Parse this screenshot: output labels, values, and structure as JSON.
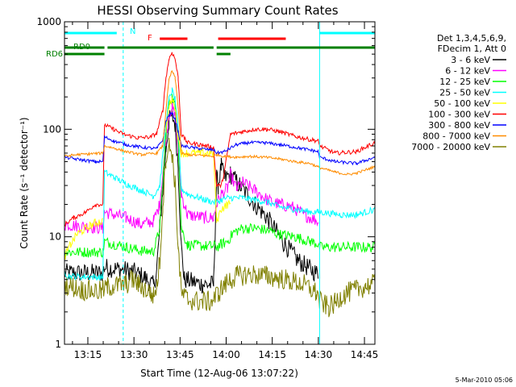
{
  "chart_data": {
    "type": "line",
    "title": "HESSI Observing Summary Count Rates",
    "xlabel": "Start Time (12-Aug-06 13:07:22)",
    "ylabel": "Count Rate (s⁻¹ detector⁻¹)",
    "footer": "5-Mar-2010 05:06",
    "x_unit": "minutes since 13:07:22",
    "xlim": [
      0,
      101
    ],
    "ylim": [
      1,
      1000
    ],
    "yscale": "log",
    "x_ticks": [
      {
        "label": "13:15",
        "value": 7.6
      },
      {
        "label": "13:30",
        "value": 22.6
      },
      {
        "label": "13:45",
        "value": 37.6
      },
      {
        "label": "14:00",
        "value": 52.6
      },
      {
        "label": "14:15",
        "value": 67.6
      },
      {
        "label": "14:30",
        "value": 82.6
      },
      {
        "label": "14:45",
        "value": 97.6
      }
    ],
    "y_ticks": [
      {
        "label": "1",
        "value": 1
      },
      {
        "label": "10",
        "value": 10
      },
      {
        "label": "100",
        "value": 100
      },
      {
        "label": "1000",
        "value": 1000
      }
    ],
    "legend_header": [
      "Det 1,3,4,5,6,9,",
      "FDecim 1, Att 0"
    ],
    "legend_placement": "right",
    "vlines": [
      {
        "x": 19.1,
        "style": "dashed",
        "color": "#00ffff"
      },
      {
        "x": 83.0,
        "style": "solid",
        "color": "#00ffff"
      },
      {
        "x": 101.0,
        "style": "dashed",
        "color": "#00ffff"
      }
    ],
    "flags": [
      {
        "label": "N",
        "color": "#00ffff",
        "segments": [
          [
            0,
            17
          ],
          [
            83,
            101
          ]
        ],
        "level": 1
      },
      {
        "label": "F",
        "color": "#ff0000",
        "segments": [
          [
            31,
            40
          ],
          [
            50,
            72
          ]
        ],
        "level": 2
      },
      {
        "label": "RD0",
        "color": "#008000",
        "segments": [
          [
            0,
            13
          ],
          [
            14,
            48.5
          ],
          [
            49.5,
            101
          ]
        ],
        "level": 3
      },
      {
        "label": "RD6",
        "color": "#008000",
        "segments": [
          [
            0,
            13
          ],
          [
            49.5,
            54
          ]
        ],
        "level": 4
      }
    ],
    "series": [
      {
        "name": "3 - 6 keV",
        "color": "#000000",
        "points": [
          [
            0,
            4.6
          ],
          [
            12.5,
            4.6
          ],
          [
            13,
            5.2
          ],
          [
            22,
            4.8
          ],
          [
            26,
            4.2
          ],
          [
            29,
            3.5
          ],
          [
            30,
            5
          ],
          [
            31,
            12
          ],
          [
            33,
            65
          ],
          [
            34,
            120
          ],
          [
            35,
            135
          ],
          [
            36,
            110
          ],
          [
            37,
            45
          ],
          [
            38,
            8
          ],
          [
            39,
            4
          ],
          [
            45,
            3.6
          ],
          [
            48.5,
            3.6
          ],
          [
            49.5,
            35
          ],
          [
            50,
            30
          ],
          [
            51,
            45
          ],
          [
            52,
            35
          ],
          [
            54,
            38
          ],
          [
            57,
            30
          ],
          [
            62,
            20
          ],
          [
            66,
            15
          ],
          [
            71,
            9
          ],
          [
            76,
            6
          ],
          [
            80,
            5
          ],
          [
            82.5,
            4.5
          ],
          [
            83,
            null
          ],
          [
            101,
            null
          ]
        ]
      },
      {
        "name": "6 - 12 keV",
        "color": "#ff00ff",
        "points": [
          [
            0,
            13
          ],
          [
            12.5,
            12
          ],
          [
            13,
            17
          ],
          [
            20,
            15
          ],
          [
            25,
            13
          ],
          [
            29,
            14
          ],
          [
            31,
            20
          ],
          [
            33,
            80
          ],
          [
            34,
            140
          ],
          [
            35,
            160
          ],
          [
            36,
            130
          ],
          [
            37,
            60
          ],
          [
            38,
            25
          ],
          [
            40,
            16
          ],
          [
            46,
            15
          ],
          [
            48.5,
            15
          ],
          [
            49.5,
            20
          ],
          [
            51,
            25
          ],
          [
            53,
            28
          ],
          [
            54,
            38
          ],
          [
            56,
            28
          ],
          [
            58,
            32
          ],
          [
            62,
            27
          ],
          [
            66,
            22
          ],
          [
            70,
            20
          ],
          [
            74,
            19
          ],
          [
            78,
            16
          ],
          [
            82.5,
            14
          ],
          [
            83,
            null
          ],
          [
            101,
            null
          ]
        ]
      },
      {
        "name": "12 - 25 keV",
        "color": "#00ff00",
        "points": [
          [
            0,
            7.2
          ],
          [
            12.5,
            7.2
          ],
          [
            13,
            9
          ],
          [
            16,
            8.6
          ],
          [
            20,
            8
          ],
          [
            25,
            7.4
          ],
          [
            29,
            7.3
          ],
          [
            31,
            12
          ],
          [
            33,
            90
          ],
          [
            34,
            175
          ],
          [
            35,
            200
          ],
          [
            36,
            165
          ],
          [
            37,
            80
          ],
          [
            38,
            12
          ],
          [
            40,
            8.4
          ],
          [
            46,
            8.2
          ],
          [
            48.5,
            8.2
          ],
          [
            49.5,
            8
          ],
          [
            51,
            8.5
          ],
          [
            53,
            9
          ],
          [
            55,
            11
          ],
          [
            58,
            12
          ],
          [
            62,
            12
          ],
          [
            66,
            11.5
          ],
          [
            70,
            10.5
          ],
          [
            75,
            10
          ],
          [
            80,
            9
          ],
          [
            82.5,
            8.6
          ],
          [
            83,
            8
          ],
          [
            101,
            8
          ]
        ]
      },
      {
        "name": "25 - 50 keV",
        "color": "#00ffff",
        "points": [
          [
            0,
            4.8
          ],
          [
            1,
            4.3
          ],
          [
            12,
            4.2
          ],
          [
            12.5,
            4.3
          ],
          [
            13,
            40
          ],
          [
            16,
            36
          ],
          [
            20,
            31
          ],
          [
            25,
            27
          ],
          [
            29,
            24
          ],
          [
            31,
            30
          ],
          [
            33,
            110
          ],
          [
            34,
            190
          ],
          [
            35,
            230
          ],
          [
            36,
            190
          ],
          [
            37,
            100
          ],
          [
            38,
            28
          ],
          [
            40,
            25
          ],
          [
            46,
            22
          ],
          [
            48.5,
            21
          ],
          [
            49.5,
            21
          ],
          [
            51,
            22
          ],
          [
            53,
            23
          ],
          [
            58,
            23
          ],
          [
            62,
            22
          ],
          [
            66,
            21
          ],
          [
            70,
            19
          ],
          [
            75,
            18
          ],
          [
            80,
            17
          ],
          [
            82.5,
            17
          ],
          [
            83,
            17
          ],
          [
            90,
            16
          ],
          [
            95,
            16
          ],
          [
            101,
            18
          ]
        ]
      },
      {
        "name": "50 - 100 keV",
        "color": "#ffff00",
        "points": [
          [
            0,
            6.5
          ],
          [
            2,
            8.5
          ],
          [
            4,
            10.5
          ],
          [
            7,
            12
          ],
          [
            10,
            13.5
          ],
          [
            12.5,
            14
          ],
          [
            13,
            null
          ],
          [
            31,
            null
          ],
          [
            33,
            100
          ],
          [
            34,
            160
          ],
          [
            35,
            190
          ],
          [
            36,
            160
          ],
          [
            37,
            85
          ],
          [
            38,
            60
          ],
          [
            46,
            60
          ],
          [
            48.5,
            60
          ],
          [
            49.5,
            14
          ],
          [
            51,
            18
          ],
          [
            53,
            20
          ],
          [
            54,
            20
          ],
          [
            55,
            null
          ],
          [
            101,
            null
          ]
        ]
      },
      {
        "name": "100 - 300 keV",
        "color": "#ff0000",
        "points": [
          [
            0,
            13
          ],
          [
            3,
            15
          ],
          [
            7,
            17
          ],
          [
            10,
            20
          ],
          [
            12.5,
            20
          ],
          [
            13,
            110
          ],
          [
            16,
            100
          ],
          [
            19,
            90
          ],
          [
            24,
            83
          ],
          [
            28,
            85
          ],
          [
            30,
            92
          ],
          [
            32,
            150
          ],
          [
            33,
            300
          ],
          [
            34,
            450
          ],
          [
            35,
            520
          ],
          [
            36,
            450
          ],
          [
            37,
            300
          ],
          [
            38,
            90
          ],
          [
            40,
            75
          ],
          [
            44,
            72
          ],
          [
            48.5,
            68
          ],
          [
            49.5,
            30
          ],
          [
            51,
            30
          ],
          [
            52,
            40
          ],
          [
            54,
            90
          ],
          [
            58,
            95
          ],
          [
            62,
            100
          ],
          [
            66,
            100
          ],
          [
            70,
            95
          ],
          [
            75,
            86
          ],
          [
            80,
            80
          ],
          [
            82.5,
            78
          ],
          [
            83,
            70
          ],
          [
            88,
            60
          ],
          [
            95,
            62
          ],
          [
            101,
            75
          ]
        ]
      },
      {
        "name": "300 - 800 keV",
        "color": "#0000ff",
        "points": [
          [
            0,
            55
          ],
          [
            5,
            52
          ],
          [
            10,
            50
          ],
          [
            12.5,
            50
          ],
          [
            13,
            85
          ],
          [
            16,
            78
          ],
          [
            20,
            72
          ],
          [
            25,
            68
          ],
          [
            30,
            66
          ],
          [
            32,
            80
          ],
          [
            33,
            120
          ],
          [
            34,
            135
          ],
          [
            35,
            140
          ],
          [
            36,
            125
          ],
          [
            37,
            95
          ],
          [
            38,
            70
          ],
          [
            44,
            66
          ],
          [
            48.5,
            64
          ],
          [
            49.5,
            60
          ],
          [
            52,
            62
          ],
          [
            56,
            72
          ],
          [
            60,
            75
          ],
          [
            65,
            75
          ],
          [
            70,
            72
          ],
          [
            75,
            68
          ],
          [
            80,
            64
          ],
          [
            82.5,
            62
          ],
          [
            83,
            55
          ],
          [
            88,
            50
          ],
          [
            95,
            48
          ],
          [
            101,
            55
          ]
        ]
      },
      {
        "name": "800 - 7000 keV",
        "color": "#ff8c00",
        "points": [
          [
            0,
            56
          ],
          [
            4,
            58
          ],
          [
            8,
            59
          ],
          [
            12.5,
            60
          ],
          [
            13,
            70
          ],
          [
            16,
            67
          ],
          [
            20,
            62
          ],
          [
            25,
            58
          ],
          [
            30,
            60
          ],
          [
            32,
            70
          ],
          [
            33,
            150
          ],
          [
            34,
            290
          ],
          [
            35,
            350
          ],
          [
            36,
            300
          ],
          [
            37,
            160
          ],
          [
            38,
            60
          ],
          [
            40,
            58
          ],
          [
            45,
            57
          ],
          [
            48.5,
            56
          ],
          [
            49.5,
            58
          ],
          [
            52,
            56
          ],
          [
            56,
            55
          ],
          [
            60,
            56
          ],
          [
            65,
            55
          ],
          [
            70,
            53
          ],
          [
            75,
            50
          ],
          [
            80,
            48
          ],
          [
            83,
            44
          ],
          [
            88,
            40
          ],
          [
            92,
            38
          ],
          [
            95,
            39
          ],
          [
            101,
            45
          ]
        ]
      },
      {
        "name": "7000 - 20000 keV",
        "color": "#808000",
        "points": [
          [
            0,
            3.6
          ],
          [
            6,
            3.2
          ],
          [
            12,
            3.1
          ],
          [
            14,
            3.4
          ],
          [
            16,
            3.5
          ],
          [
            20,
            3.6
          ],
          [
            22,
            4
          ],
          [
            24,
            3.6
          ],
          [
            26,
            3.3
          ],
          [
            28,
            3
          ],
          [
            29,
            2.8
          ],
          [
            30,
            3.5
          ],
          [
            31,
            6
          ],
          [
            32,
            20
          ],
          [
            33,
            55
          ],
          [
            34,
            70
          ],
          [
            35,
            60
          ],
          [
            36,
            30
          ],
          [
            37,
            8
          ],
          [
            38,
            3
          ],
          [
            40,
            2.6
          ],
          [
            44,
            2.5
          ],
          [
            48,
            2.5
          ],
          [
            50,
            3
          ],
          [
            52,
            3.5
          ],
          [
            54,
            4
          ],
          [
            56,
            4.3
          ],
          [
            60,
            4.5
          ],
          [
            66,
            4.3
          ],
          [
            72,
            4
          ],
          [
            78,
            3.6
          ],
          [
            82,
            3
          ],
          [
            83,
            2.5
          ],
          [
            86,
            2.2
          ],
          [
            88,
            2.4
          ],
          [
            90,
            2.8
          ],
          [
            92,
            3
          ],
          [
            95,
            3.2
          ],
          [
            98,
            3.5
          ],
          [
            101,
            3.6
          ]
        ]
      }
    ]
  }
}
